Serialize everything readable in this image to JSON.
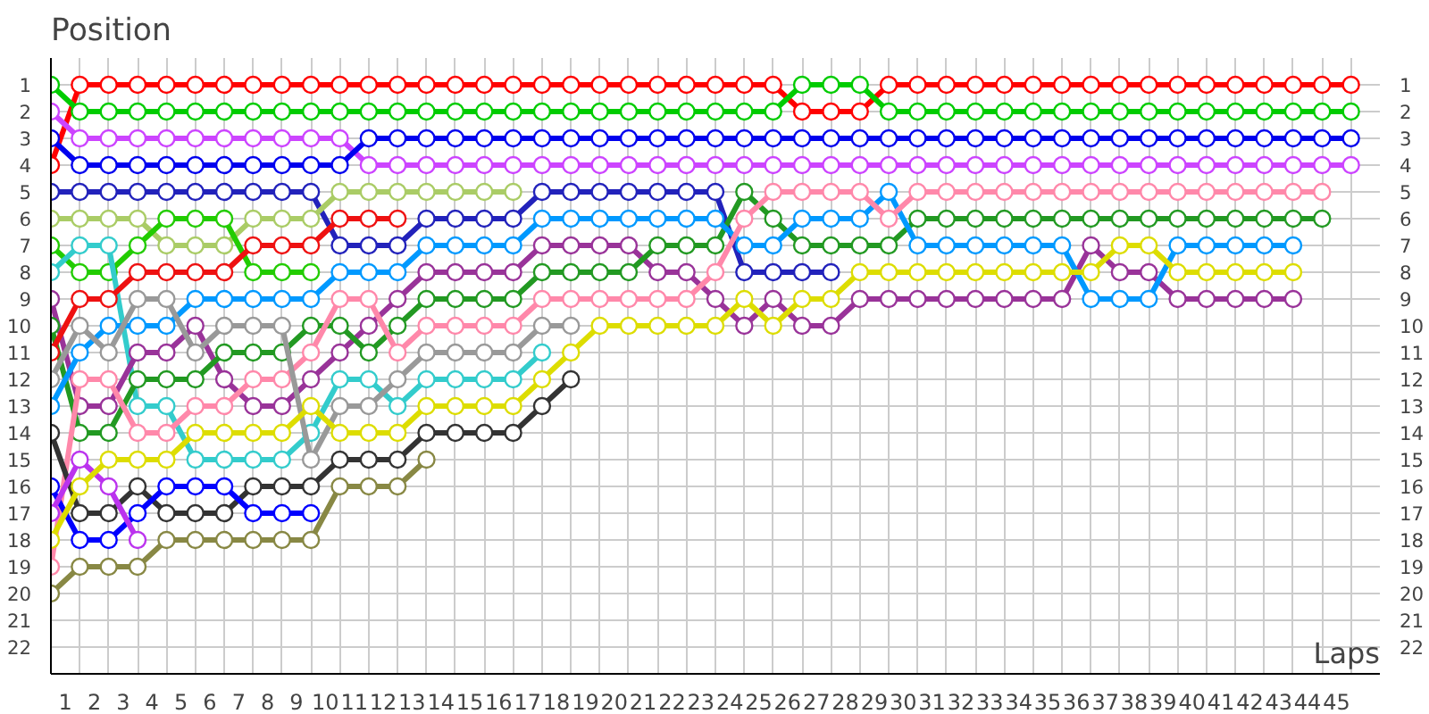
{
  "chart_data": {
    "type": "line",
    "ylabel": "Position",
    "xlabel": "Laps",
    "x": [
      0,
      1,
      2,
      3,
      4,
      5,
      6,
      7,
      8,
      9,
      10,
      11,
      12,
      13,
      14,
      15,
      16,
      17,
      18,
      19,
      20,
      21,
      22,
      23,
      24,
      25,
      26,
      27,
      28,
      29,
      30,
      31,
      32,
      33,
      34,
      35,
      36,
      37,
      38,
      39,
      40,
      41,
      42,
      43,
      44,
      45
    ],
    "xlim": [
      0,
      46
    ],
    "ylim": [
      23,
      0
    ],
    "y2lim": [
      23,
      0
    ],
    "xticks": [
      {
        "value": 0.5,
        "label": "1"
      },
      {
        "value": 1.5,
        "label": "2"
      },
      {
        "value": 2.5,
        "label": "3"
      },
      {
        "value": 3.5,
        "label": "4"
      },
      {
        "value": 4.5,
        "label": "5"
      },
      {
        "value": 5.5,
        "label": "6"
      },
      {
        "value": 6.5,
        "label": "7"
      },
      {
        "value": 7.5,
        "label": "8"
      },
      {
        "value": 8.5,
        "label": "9"
      },
      {
        "value": 9.5,
        "label": "10"
      },
      {
        "value": 10.5,
        "label": "11"
      },
      {
        "value": 11.5,
        "label": "12"
      },
      {
        "value": 12.5,
        "label": "13"
      },
      {
        "value": 13.5,
        "label": "14"
      },
      {
        "value": 14.5,
        "label": "15"
      },
      {
        "value": 15.5,
        "label": "16"
      },
      {
        "value": 16.5,
        "label": "17"
      },
      {
        "value": 17.5,
        "label": "18"
      },
      {
        "value": 18.5,
        "label": "19"
      },
      {
        "value": 19.5,
        "label": "20"
      },
      {
        "value": 20.5,
        "label": "21"
      },
      {
        "value": 21.5,
        "label": "22"
      },
      {
        "value": 22.5,
        "label": "23"
      },
      {
        "value": 23.5,
        "label": "24"
      },
      {
        "value": 24.5,
        "label": "25"
      },
      {
        "value": 25.5,
        "label": "26"
      },
      {
        "value": 26.5,
        "label": "27"
      },
      {
        "value": 27.5,
        "label": "28"
      },
      {
        "value": 28.5,
        "label": "29"
      },
      {
        "value": 29.5,
        "label": "30"
      },
      {
        "value": 30.5,
        "label": "31"
      },
      {
        "value": 31.5,
        "label": "32"
      },
      {
        "value": 32.5,
        "label": "33"
      },
      {
        "value": 33.5,
        "label": "34"
      },
      {
        "value": 34.5,
        "label": "35"
      },
      {
        "value": 35.5,
        "label": "36"
      },
      {
        "value": 36.5,
        "label": "37"
      },
      {
        "value": 37.5,
        "label": "38"
      },
      {
        "value": 38.5,
        "label": "39"
      },
      {
        "value": 39.5,
        "label": "40"
      },
      {
        "value": 40.5,
        "label": "41"
      },
      {
        "value": 41.5,
        "label": "42"
      },
      {
        "value": 42.5,
        "label": "43"
      },
      {
        "value": 43.5,
        "label": "44"
      },
      {
        "value": 44.5,
        "label": "45"
      }
    ],
    "yticks": [
      1,
      2,
      3,
      4,
      5,
      6,
      7,
      8,
      9,
      10,
      11,
      12,
      13,
      14,
      15,
      16,
      17,
      18,
      19,
      20,
      21,
      22
    ],
    "y2ticks": [
      1,
      2,
      3,
      4,
      5,
      6,
      7,
      8,
      9,
      10,
      11,
      12,
      13,
      14,
      15,
      16,
      17,
      18,
      19,
      20,
      21,
      22
    ],
    "grid": true,
    "marker": "circle",
    "line_style": "solid",
    "series": [
      {
        "color": "#ff0000",
        "values": [
          4,
          1,
          1,
          1,
          1,
          1,
          1,
          1,
          1,
          1,
          1,
          1,
          1,
          1,
          1,
          1,
          1,
          1,
          1,
          1,
          1,
          1,
          1,
          1,
          1,
          1,
          2,
          2,
          2,
          1,
          1,
          1,
          1,
          1,
          1,
          1,
          1,
          1,
          1,
          1,
          1,
          1,
          1,
          1,
          1,
          1
        ]
      },
      {
        "color": "#00cc00",
        "values": [
          1,
          2,
          2,
          2,
          2,
          2,
          2,
          2,
          2,
          2,
          2,
          2,
          2,
          2,
          2,
          2,
          2,
          2,
          2,
          2,
          2,
          2,
          2,
          2,
          2,
          2,
          1,
          1,
          1,
          2,
          2,
          2,
          2,
          2,
          2,
          2,
          2,
          2,
          2,
          2,
          2,
          2,
          2,
          2,
          2,
          2
        ]
      },
      {
        "color": "#cc44ff",
        "values": [
          2,
          3,
          3,
          3,
          3,
          3,
          3,
          3,
          3,
          3,
          3,
          4,
          4,
          4,
          4,
          4,
          4,
          4,
          4,
          4,
          4,
          4,
          4,
          4,
          4,
          4,
          4,
          4,
          4,
          4,
          4,
          4,
          4,
          4,
          4,
          4,
          4,
          4,
          4,
          4,
          4,
          4,
          4,
          4,
          4,
          4
        ]
      },
      {
        "color": "#0000ee",
        "values": [
          3,
          4,
          4,
          4,
          4,
          4,
          4,
          4,
          4,
          4,
          4,
          3,
          3,
          3,
          3,
          3,
          3,
          3,
          3,
          3,
          3,
          3,
          3,
          3,
          3,
          3,
          3,
          3,
          3,
          3,
          3,
          3,
          3,
          3,
          3,
          3,
          3,
          3,
          3,
          3,
          3,
          3,
          3,
          3,
          3,
          3
        ]
      },
      {
        "color": "#2222bb",
        "x": [
          0,
          1,
          2,
          3,
          4,
          5,
          6,
          7,
          8,
          9,
          10,
          11,
          12,
          13,
          14,
          15,
          16,
          17,
          18,
          19,
          20,
          21,
          22,
          23,
          24,
          25,
          26,
          27
        ],
        "values": [
          5,
          5,
          5,
          5,
          5,
          5,
          5,
          5,
          5,
          5,
          7,
          7,
          7,
          6,
          6,
          6,
          6,
          5,
          5,
          5,
          5,
          5,
          5,
          5,
          8,
          8,
          8,
          8
        ]
      },
      {
        "color": "#aacc66",
        "x": [
          0,
          1,
          2,
          3,
          4,
          5,
          6,
          7,
          8,
          9,
          10,
          11,
          12,
          13,
          14,
          15,
          16
        ],
        "values": [
          6,
          6,
          6,
          6,
          7,
          7,
          7,
          6,
          6,
          6,
          5,
          5,
          5,
          5,
          5,
          5,
          5
        ]
      },
      {
        "color": "#22cc00",
        "x": [
          0,
          1,
          2,
          3,
          4,
          5,
          6,
          7,
          8,
          9
        ],
        "values": [
          7,
          8,
          8,
          7,
          6,
          6,
          6,
          8,
          8,
          8
        ]
      },
      {
        "color": "#33cccc",
        "x": [
          0,
          1,
          2,
          3,
          4,
          5,
          6,
          7,
          8,
          9,
          10,
          11,
          12,
          13,
          14,
          15,
          16,
          17
        ],
        "values": [
          8,
          7,
          7,
          13,
          13,
          15,
          15,
          15,
          15,
          14,
          12,
          12,
          13,
          12,
          12,
          12,
          12,
          11
        ]
      },
      {
        "color": "#993399",
        "x": [
          0,
          1,
          2,
          3,
          4,
          5,
          6,
          7,
          8,
          9,
          10,
          11,
          12,
          13,
          14,
          15,
          16,
          17,
          18,
          19,
          20,
          21,
          22,
          23,
          24,
          25,
          26,
          27,
          28,
          29,
          30,
          31,
          32,
          33,
          34,
          35,
          36,
          37,
          38,
          39,
          40,
          41,
          42,
          43
        ],
        "values": [
          9,
          13,
          13,
          11,
          11,
          10,
          12,
          13,
          13,
          12,
          11,
          10,
          9,
          8,
          8,
          8,
          8,
          7,
          7,
          7,
          7,
          8,
          8,
          9,
          10,
          9,
          10,
          10,
          9,
          9,
          9,
          9,
          9,
          9,
          9,
          9,
          7,
          8,
          8,
          9,
          9,
          9,
          9,
          9
        ]
      },
      {
        "color": "#229922",
        "x": [
          0,
          1,
          2,
          3,
          4,
          5,
          6,
          7,
          8,
          9,
          10,
          11,
          12,
          13,
          14,
          15,
          16,
          17,
          18,
          19,
          20,
          21,
          22,
          23,
          24,
          25,
          26,
          27,
          28,
          29,
          30,
          31,
          32,
          33,
          34,
          35,
          36,
          37,
          38,
          39,
          40,
          41,
          42,
          43,
          44
        ],
        "values": [
          10,
          14,
          14,
          12,
          12,
          12,
          11,
          11,
          11,
          10,
          10,
          11,
          10,
          9,
          9,
          9,
          9,
          8,
          8,
          8,
          8,
          7,
          7,
          7,
          5,
          6,
          7,
          7,
          7,
          7,
          6,
          6,
          6,
          6,
          6,
          6,
          6,
          6,
          6,
          6,
          6,
          6,
          6,
          6,
          6
        ]
      },
      {
        "color": "#0099ff",
        "x": [
          0,
          1,
          2,
          3,
          4,
          5,
          6,
          7,
          8,
          9,
          10,
          11,
          12,
          13,
          14,
          15,
          16,
          17,
          18,
          19,
          20,
          21,
          22,
          23,
          24,
          25,
          26,
          27,
          28,
          29,
          30,
          31,
          32,
          33,
          34,
          35,
          36,
          37,
          38,
          39,
          40,
          41,
          42,
          43
        ],
        "values": [
          13,
          11,
          10,
          10,
          10,
          9,
          9,
          9,
          9,
          9,
          8,
          8,
          8,
          7,
          7,
          7,
          7,
          6,
          6,
          6,
          6,
          6,
          6,
          6,
          7,
          7,
          6,
          6,
          6,
          5,
          7,
          7,
          7,
          7,
          7,
          7,
          9,
          9,
          9,
          7,
          7,
          7,
          7,
          7
        ]
      },
      {
        "color": "#ff88aa",
        "x": [
          0,
          1,
          2,
          3,
          4,
          5,
          6,
          7,
          8,
          9,
          10,
          11,
          12,
          13,
          14,
          15,
          16,
          17,
          18,
          19,
          20,
          21,
          22,
          23,
          24,
          25,
          26,
          27,
          28,
          29,
          30,
          31,
          32,
          33,
          34,
          35,
          36,
          37,
          38,
          39,
          40,
          41,
          42,
          43,
          44
        ],
        "values": [
          19,
          12,
          12,
          14,
          14,
          13,
          13,
          12,
          12,
          11,
          9,
          9,
          11,
          10,
          10,
          10,
          10,
          9,
          9,
          9,
          9,
          9,
          9,
          8,
          6,
          5,
          5,
          5,
          5,
          6,
          5,
          5,
          5,
          5,
          5,
          5,
          5,
          5,
          5,
          5,
          5,
          5,
          5,
          5,
          5
        ]
      },
      {
        "color": "#999999",
        "x": [
          0,
          1,
          2,
          3,
          4,
          5,
          6,
          7,
          8,
          9,
          10,
          11,
          12,
          13,
          14,
          15,
          16,
          17,
          18
        ],
        "values": [
          12,
          10,
          11,
          9,
          9,
          11,
          10,
          10,
          10,
          15,
          13,
          13,
          12,
          11,
          11,
          11,
          11,
          10,
          10
        ]
      },
      {
        "color": "#ee1111",
        "x": [
          0,
          1,
          2,
          3,
          4,
          5,
          6,
          7,
          8,
          9,
          10,
          11,
          12
        ],
        "values": [
          11,
          9,
          9,
          8,
          8,
          8,
          8,
          7,
          7,
          7,
          6,
          6,
          6
        ]
      },
      {
        "color": "#333333",
        "x": [
          0,
          1,
          2,
          3,
          4,
          5,
          6,
          7,
          8,
          9,
          10,
          11,
          12,
          13,
          14,
          15,
          16,
          17,
          18
        ],
        "values": [
          14,
          17,
          17,
          16,
          17,
          17,
          17,
          16,
          16,
          16,
          15,
          15,
          15,
          14,
          14,
          14,
          14,
          13,
          12
        ]
      },
      {
        "color": "#0000ff",
        "x": [
          0,
          1,
          2,
          3,
          4,
          5,
          6,
          7,
          8,
          9
        ],
        "values": [
          16,
          18,
          18,
          17,
          16,
          16,
          16,
          17,
          17,
          17
        ]
      },
      {
        "color": "#bb33ee",
        "x": [
          0,
          1,
          2,
          3
        ],
        "values": [
          17,
          15,
          16,
          18
        ]
      },
      {
        "color": "#dddd00",
        "x": [
          0,
          1,
          2,
          3,
          4,
          5,
          6,
          7,
          8,
          9,
          10,
          11,
          12,
          13,
          14,
          15,
          16,
          17,
          18,
          19,
          20,
          21,
          22,
          23,
          24,
          25,
          26,
          27,
          28,
          29,
          30,
          31,
          32,
          33,
          34,
          35,
          36,
          37,
          38,
          39,
          40,
          41,
          42,
          43
        ],
        "values": [
          18,
          16,
          15,
          15,
          15,
          14,
          14,
          14,
          14,
          13,
          14,
          14,
          14,
          13,
          13,
          13,
          13,
          12,
          11,
          10,
          10,
          10,
          10,
          10,
          9,
          10,
          9,
          9,
          8,
          8,
          8,
          8,
          8,
          8,
          8,
          8,
          8,
          7,
          7,
          8,
          8,
          8,
          8,
          8
        ]
      },
      {
        "color": "#888844",
        "x": [
          0,
          1,
          2,
          3,
          4,
          5,
          6,
          7,
          8,
          9,
          10,
          11,
          12,
          13
        ],
        "values": [
          20,
          19,
          19,
          19,
          18,
          18,
          18,
          18,
          18,
          18,
          16,
          16,
          16,
          15
        ]
      }
    ]
  }
}
